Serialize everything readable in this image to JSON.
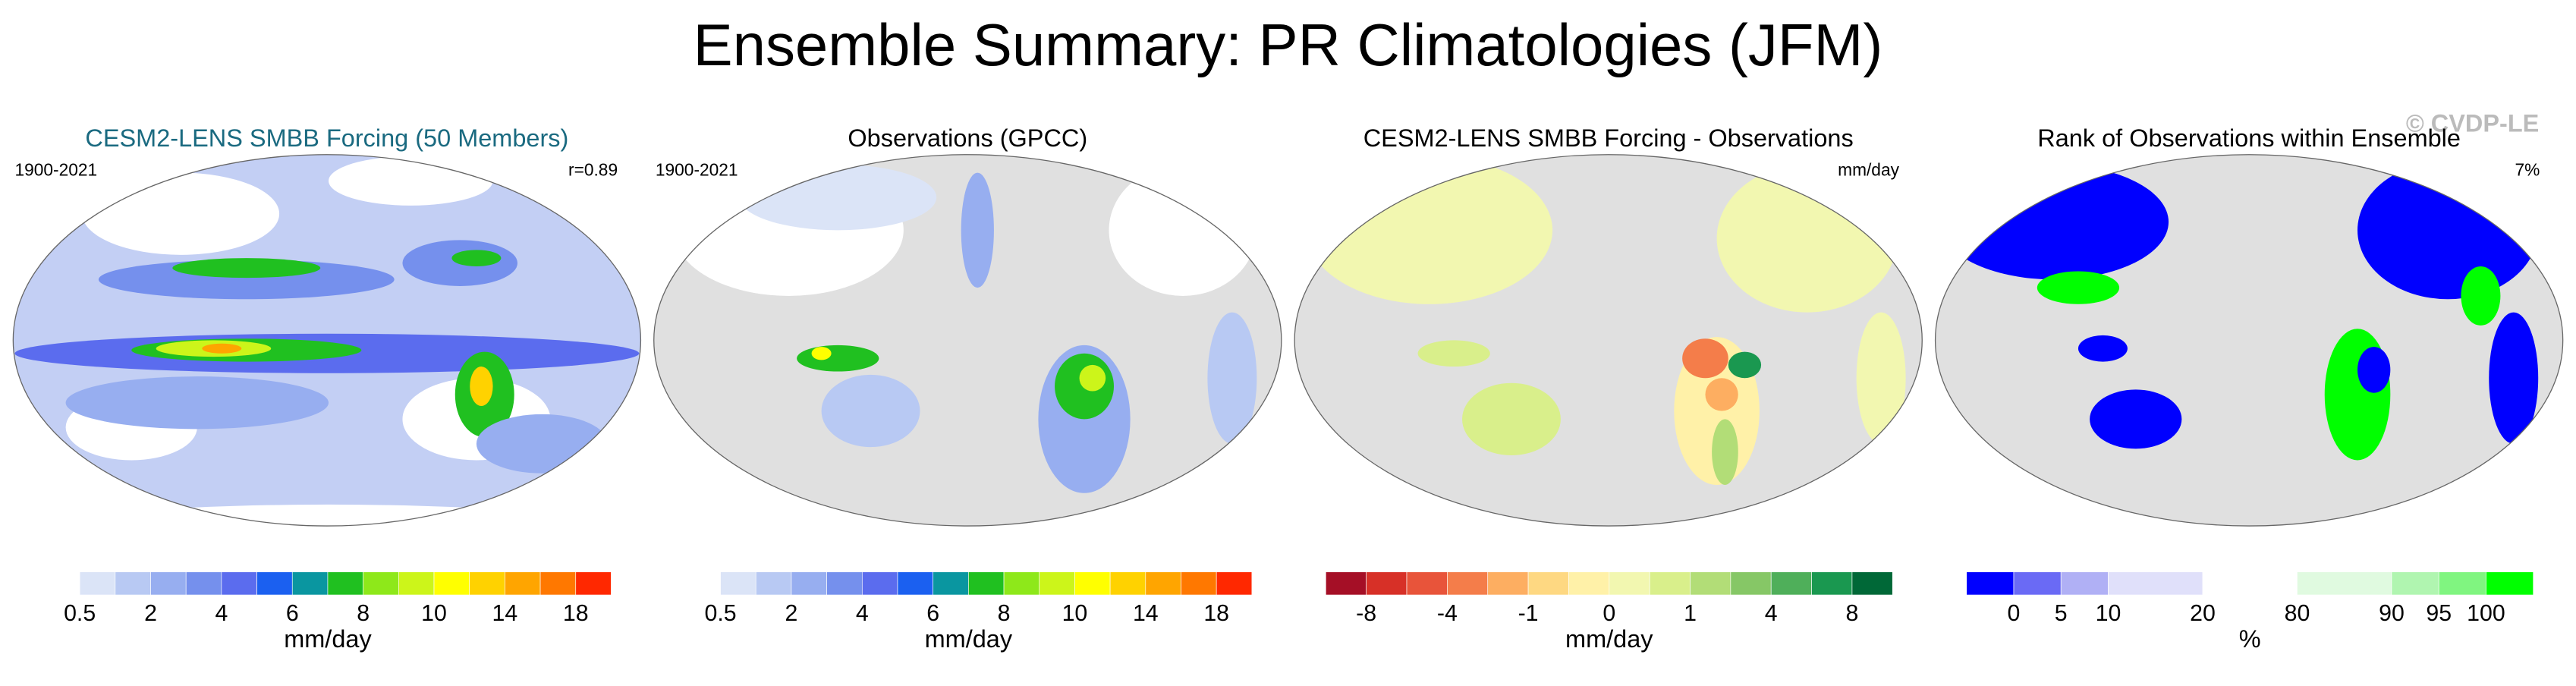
{
  "title": "Ensemble Summary: PR Climatologies (JFM)",
  "watermark": "© CVDP-LE",
  "panels": [
    {
      "title": "CESM2-LENS SMBB Forcing (50 Members)",
      "left": "1900-2021",
      "right": "r=0.89",
      "colorbar": {
        "colors": [
          "#ffffff",
          "#dbe4f7",
          "#b8c9f3",
          "#97aef0",
          "#7590ed",
          "#5b6cee",
          "#1b60f0",
          "#0a96a0",
          "#20c020",
          "#8ee81a",
          "#ccf51a",
          "#ffff00",
          "#ffd200",
          "#ffa500",
          "#ff7800",
          "#ff2800"
        ],
        "labels": [
          0.5,
          2,
          4,
          6,
          8,
          10,
          14,
          18
        ],
        "units": "mm/day"
      }
    },
    {
      "title": "Observations (GPCC)",
      "left": "1900-2021",
      "colorbar": {
        "colors": [
          "#ffffff",
          "#dbe4f7",
          "#b8c9f3",
          "#97aef0",
          "#7590ed",
          "#5b6cee",
          "#1b60f0",
          "#0a96a0",
          "#20c020",
          "#8ee81a",
          "#ccf51a",
          "#ffff00",
          "#ffd200",
          "#ffa500",
          "#ff7800",
          "#ff2800"
        ],
        "labels": [
          0.5,
          2,
          4,
          6,
          8,
          10,
          14,
          18
        ],
        "units": "mm/day"
      }
    },
    {
      "title": "CESM2-LENS SMBB Forcing - Observations",
      "right": "mm/day",
      "colorbar": {
        "colors": [
          "#a50f26",
          "#d73027",
          "#e8543a",
          "#f47d4a",
          "#fdae61",
          "#fed882",
          "#fff1a8",
          "#f2f7b0",
          "#d9ef8b",
          "#b2dd77",
          "#86c766",
          "#4faf5a",
          "#1a9850",
          "#006837"
        ],
        "labels": [
          -8,
          -4,
          -1,
          0,
          1,
          4,
          8
        ],
        "units": "mm/day"
      }
    },
    {
      "title": "Rank of Observations within Ensemble",
      "right": "7%",
      "colorbar": {
        "colors": [
          "#0000ff",
          "#6a6af5",
          "#b0b0f5",
          "#e0e0fa",
          "#ffffff",
          "#e0fae0",
          "#b0f5b0",
          "#80f580",
          "#00ff00"
        ],
        "labels": [
          0,
          5,
          10,
          20,
          80,
          90,
          95,
          100
        ],
        "units": "%"
      }
    }
  ]
}
